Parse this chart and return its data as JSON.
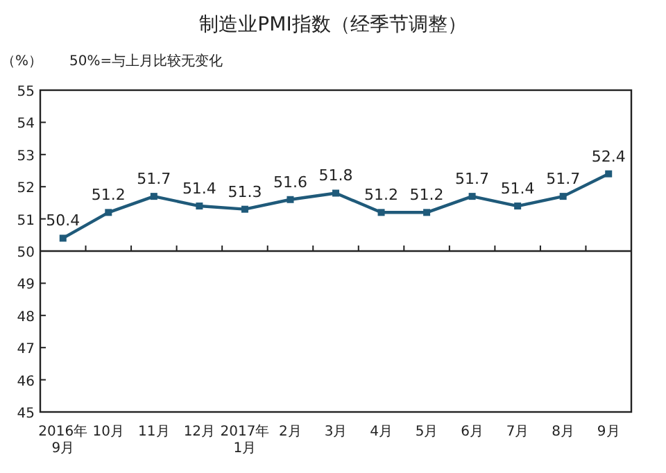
{
  "chart_data": {
    "type": "line",
    "title": "制造业PMI指数（经季节调整）",
    "ylabel": "（%）",
    "annotations": [
      "50%=与上月比较无变化"
    ],
    "categories": [
      "2016年\n9月",
      "10月",
      "11月",
      "12月",
      "2017年\n1月",
      "2月",
      "3月",
      "4月",
      "5月",
      "6月",
      "7月",
      "8月",
      "9月"
    ],
    "series": [
      {
        "color": "#1f5a7a",
        "values": [
          50.4,
          51.2,
          51.7,
          51.4,
          51.3,
          51.6,
          51.8,
          51.2,
          51.2,
          51.7,
          51.4,
          51.7,
          52.4
        ]
      }
    ],
    "ylim": [
      45,
      55
    ],
    "yticks": [
      45,
      46,
      47,
      48,
      49,
      50,
      51,
      52,
      53,
      54,
      55
    ],
    "data_labels": true,
    "marker": "square",
    "line_style": "solid",
    "ref_lines": [
      {
        "axis": "y",
        "value": 50,
        "color": "#222222"
      }
    ]
  }
}
